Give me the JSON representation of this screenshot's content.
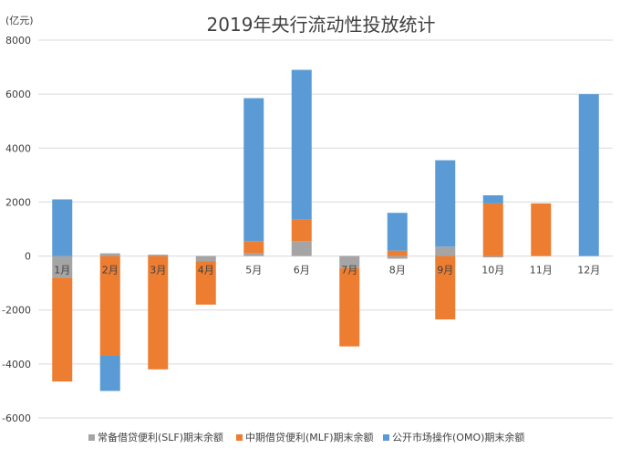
{
  "chart_data": {
    "type": "bar",
    "stacked": true,
    "title": "2019年央行流动性投放统计",
    "ylabel": "(亿元)",
    "xlabel": "",
    "ylim": [
      -6000,
      8000
    ],
    "yticks": [
      -6000,
      -4000,
      -2000,
      0,
      2000,
      4000,
      6000,
      8000
    ],
    "grid": true,
    "legend_position": "bottom",
    "categories": [
      "1月",
      "2月",
      "3月",
      "4月",
      "5月",
      "6月",
      "7月",
      "8月",
      "9月",
      "10月",
      "11月",
      "12月"
    ],
    "series": [
      {
        "name": "常备借贷便利(SLF)期末余额",
        "color": "#a5a5a5",
        "values": [
          -800,
          100,
          50,
          -200,
          100,
          550,
          -450,
          -100,
          350,
          -50,
          0,
          0
        ]
      },
      {
        "name": "中期借贷便利(MLF)期末余额",
        "color": "#ed7d31",
        "values": [
          -3850,
          -3700,
          -4200,
          -1600,
          450,
          800,
          -2900,
          200,
          -2350,
          1950,
          1950,
          0
        ]
      },
      {
        "name": "公开市场操作(OMO)期末余额",
        "color": "#5b9bd5",
        "values": [
          2100,
          -1300,
          0,
          0,
          5300,
          5550,
          0,
          1400,
          3200,
          300,
          0,
          6000
        ]
      }
    ]
  }
}
